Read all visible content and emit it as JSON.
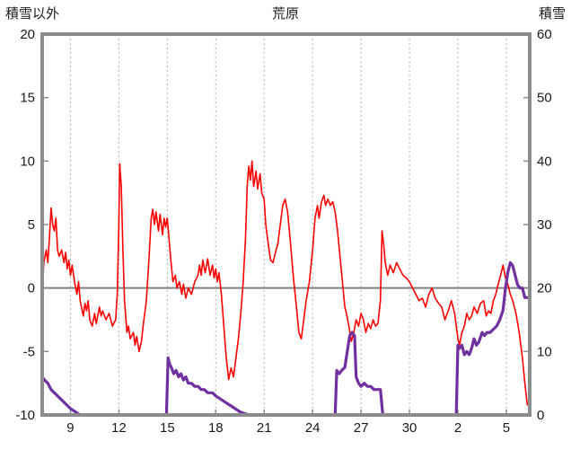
{
  "page": {
    "top_left_label": "積雪以外",
    "top_center_title": "荒原",
    "top_right_label": "積雪"
  },
  "chart_data": {
    "type": "line",
    "title": "荒原",
    "left_axis": {
      "label": "積雪以外",
      "min": -10,
      "max": 20,
      "ticks": [
        20,
        15,
        10,
        5,
        0,
        -5,
        -10
      ]
    },
    "right_axis": {
      "label": "積雪",
      "min": 0,
      "max": 60,
      "ticks": [
        60,
        50,
        40,
        30,
        20,
        10,
        0
      ]
    },
    "x_axis": {
      "min": 7.25,
      "max": 37.45,
      "tick_positions": [
        9,
        12,
        15,
        18,
        21,
        24,
        27,
        30,
        33,
        36
      ],
      "tick_labels": [
        "9",
        "12",
        "15",
        "18",
        "21",
        "24",
        "27",
        "30",
        "2",
        "5"
      ]
    },
    "grid": {
      "vertical_dashed": true,
      "zero_line_on_left_axis": true
    },
    "colors": {
      "red_series": "#ff0000",
      "purple_series": "#7030a0",
      "frame": "#8c8c8c",
      "grid": "#b3b3b3",
      "zero_line": "#808080",
      "text": "#1a1a1a"
    },
    "series": [
      {
        "name": "left-axis-red-line",
        "axis": "left",
        "color": "#ff0000",
        "width": 1.6,
        "points": [
          [
            7.25,
            -0.5
          ],
          [
            7.35,
            2
          ],
          [
            7.5,
            3
          ],
          [
            7.6,
            2
          ],
          [
            7.7,
            4
          ],
          [
            7.8,
            6.3
          ],
          [
            7.9,
            5
          ],
          [
            8.0,
            4.5
          ],
          [
            8.1,
            5.5
          ],
          [
            8.2,
            3
          ],
          [
            8.3,
            2.5
          ],
          [
            8.45,
            3
          ],
          [
            8.6,
            2
          ],
          [
            8.7,
            2.8
          ],
          [
            8.8,
            1.5
          ],
          [
            8.9,
            2.2
          ],
          [
            9.0,
            1
          ],
          [
            9.1,
            1.8
          ],
          [
            9.25,
            0.5
          ],
          [
            9.4,
            -0.5
          ],
          [
            9.5,
            0.5
          ],
          [
            9.6,
            -1
          ],
          [
            9.8,
            -2.2
          ],
          [
            9.9,
            -1.2
          ],
          [
            10.0,
            -1.8
          ],
          [
            10.1,
            -1
          ],
          [
            10.2,
            -2.5
          ],
          [
            10.35,
            -3
          ],
          [
            10.5,
            -2
          ],
          [
            10.6,
            -2.8
          ],
          [
            10.8,
            -1.5
          ],
          [
            10.9,
            -2.2
          ],
          [
            11.0,
            -1.8
          ],
          [
            11.2,
            -2.5
          ],
          [
            11.4,
            -2
          ],
          [
            11.6,
            -3
          ],
          [
            11.8,
            -2.5
          ],
          [
            11.9,
            -0.5
          ],
          [
            12.0,
            5
          ],
          [
            12.05,
            9.8
          ],
          [
            12.15,
            8
          ],
          [
            12.25,
            3
          ],
          [
            12.35,
            -1
          ],
          [
            12.5,
            -3.5
          ],
          [
            12.6,
            -3
          ],
          [
            12.7,
            -4
          ],
          [
            12.9,
            -3.5
          ],
          [
            13.0,
            -4.5
          ],
          [
            13.1,
            -3.8
          ],
          [
            13.25,
            -5
          ],
          [
            13.4,
            -4.2
          ],
          [
            13.5,
            -3
          ],
          [
            13.7,
            -1
          ],
          [
            13.85,
            2
          ],
          [
            14.0,
            5.5
          ],
          [
            14.1,
            6.2
          ],
          [
            14.2,
            5
          ],
          [
            14.3,
            6
          ],
          [
            14.45,
            4.5
          ],
          [
            14.55,
            5.8
          ],
          [
            14.7,
            4.2
          ],
          [
            14.8,
            5.5
          ],
          [
            14.9,
            4.8
          ],
          [
            15.0,
            5.5
          ],
          [
            15.1,
            4
          ],
          [
            15.2,
            2.5
          ],
          [
            15.35,
            0.5
          ],
          [
            15.5,
            1
          ],
          [
            15.6,
            0
          ],
          [
            15.75,
            0.5
          ],
          [
            15.9,
            -0.5
          ],
          [
            16.0,
            0.3
          ],
          [
            16.15,
            -0.8
          ],
          [
            16.3,
            0
          ],
          [
            16.5,
            -0.5
          ],
          [
            16.7,
            0.5
          ],
          [
            16.9,
            1
          ],
          [
            17.0,
            1.8
          ],
          [
            17.1,
            1
          ],
          [
            17.2,
            2.2
          ],
          [
            17.35,
            1.2
          ],
          [
            17.5,
            2.3
          ],
          [
            17.65,
            1
          ],
          [
            17.8,
            1.8
          ],
          [
            17.9,
            0.8
          ],
          [
            18.0,
            1.5
          ],
          [
            18.1,
            0.5
          ],
          [
            18.2,
            1.2
          ],
          [
            18.35,
            -0.5
          ],
          [
            18.5,
            -3
          ],
          [
            18.65,
            -5.5
          ],
          [
            18.8,
            -7.2
          ],
          [
            18.95,
            -6.3
          ],
          [
            19.1,
            -7
          ],
          [
            19.25,
            -5.5
          ],
          [
            19.4,
            -4
          ],
          [
            19.55,
            -2
          ],
          [
            19.7,
            0.5
          ],
          [
            19.85,
            4
          ],
          [
            19.95,
            8
          ],
          [
            20.05,
            9.6
          ],
          [
            20.15,
            8.5
          ],
          [
            20.25,
            10
          ],
          [
            20.35,
            8
          ],
          [
            20.5,
            9.2
          ],
          [
            20.6,
            7.8
          ],
          [
            20.75,
            9
          ],
          [
            20.85,
            7.5
          ],
          [
            21.0,
            7
          ],
          [
            21.1,
            5
          ],
          [
            21.25,
            3.5
          ],
          [
            21.4,
            2.2
          ],
          [
            21.55,
            2
          ],
          [
            21.7,
            2.8
          ],
          [
            21.85,
            3.5
          ],
          [
            22.0,
            5
          ],
          [
            22.15,
            6.5
          ],
          [
            22.3,
            7
          ],
          [
            22.45,
            6
          ],
          [
            22.6,
            4
          ],
          [
            22.8,
            1
          ],
          [
            23.0,
            -1.5
          ],
          [
            23.15,
            -3.5
          ],
          [
            23.3,
            -4
          ],
          [
            23.45,
            -2.5
          ],
          [
            23.6,
            -1
          ],
          [
            23.8,
            0.5
          ],
          [
            24.0,
            3
          ],
          [
            24.15,
            5.5
          ],
          [
            24.3,
            6.5
          ],
          [
            24.4,
            5.5
          ],
          [
            24.55,
            6.8
          ],
          [
            24.7,
            7.3
          ],
          [
            24.8,
            6.5
          ],
          [
            24.95,
            7
          ],
          [
            25.1,
            6.5
          ],
          [
            25.25,
            6.8
          ],
          [
            25.4,
            6
          ],
          [
            25.55,
            4.5
          ],
          [
            25.7,
            2.5
          ],
          [
            25.85,
            0.5
          ],
          [
            26.0,
            -1.5
          ],
          [
            26.1,
            -2
          ],
          [
            26.25,
            -3
          ],
          [
            26.4,
            -4.2
          ],
          [
            26.55,
            -3.5
          ],
          [
            26.7,
            -2.5
          ],
          [
            26.85,
            -3
          ],
          [
            27.0,
            -2
          ],
          [
            27.15,
            -2.5
          ],
          [
            27.3,
            -3.5
          ],
          [
            27.45,
            -2.8
          ],
          [
            27.6,
            -3.2
          ],
          [
            27.75,
            -2.5
          ],
          [
            27.9,
            -3
          ],
          [
            28.05,
            -2.8
          ],
          [
            28.2,
            -1
          ],
          [
            28.3,
            4.5
          ],
          [
            28.4,
            3.5
          ],
          [
            28.5,
            2
          ],
          [
            28.65,
            1
          ],
          [
            28.8,
            1.8
          ],
          [
            29.0,
            1.2
          ],
          [
            29.2,
            2
          ],
          [
            29.4,
            1.5
          ],
          [
            29.6,
            1
          ],
          [
            29.8,
            0.8
          ],
          [
            30.0,
            0.5
          ],
          [
            30.2,
            0
          ],
          [
            30.4,
            -0.5
          ],
          [
            30.6,
            -1
          ],
          [
            30.8,
            -0.8
          ],
          [
            31.0,
            -1.5
          ],
          [
            31.2,
            -0.5
          ],
          [
            31.4,
            0
          ],
          [
            31.6,
            -0.8
          ],
          [
            31.8,
            -1.2
          ],
          [
            32.0,
            -1.5
          ],
          [
            32.2,
            -2.5
          ],
          [
            32.4,
            -1.8
          ],
          [
            32.6,
            -1
          ],
          [
            32.8,
            -2
          ],
          [
            33.0,
            -4
          ],
          [
            33.1,
            -4.5
          ],
          [
            33.25,
            -3.5
          ],
          [
            33.4,
            -3
          ],
          [
            33.55,
            -2
          ],
          [
            33.7,
            -2.5
          ],
          [
            33.85,
            -2.2
          ],
          [
            34.0,
            -1.5
          ],
          [
            34.2,
            -2
          ],
          [
            34.4,
            -1.2
          ],
          [
            34.6,
            -1
          ],
          [
            34.75,
            -2.2
          ],
          [
            34.9,
            -1.8
          ],
          [
            35.05,
            -2
          ],
          [
            35.2,
            -1
          ],
          [
            35.35,
            -0.5
          ],
          [
            35.5,
            0.3
          ],
          [
            35.65,
            1
          ],
          [
            35.8,
            1.8
          ],
          [
            35.95,
            0.8
          ],
          [
            36.1,
            0.3
          ],
          [
            36.25,
            -0.5
          ],
          [
            36.4,
            -1
          ],
          [
            36.6,
            -2
          ],
          [
            36.8,
            -3.5
          ],
          [
            37.0,
            -5.5
          ],
          [
            37.15,
            -7.5
          ],
          [
            37.3,
            -9.2
          ]
        ]
      },
      {
        "name": "right-axis-purple-line",
        "axis": "right",
        "color": "#7030a0",
        "width": 3.2,
        "points": [
          [
            7.25,
            6
          ],
          [
            7.4,
            5.5
          ],
          [
            7.6,
            5
          ],
          [
            7.8,
            4
          ],
          [
            8.0,
            3.5
          ],
          [
            8.2,
            3
          ],
          [
            8.4,
            2.5
          ],
          [
            8.6,
            2
          ],
          [
            8.8,
            1.5
          ],
          [
            9.0,
            1
          ],
          [
            9.3,
            0.5
          ],
          [
            9.6,
            0
          ],
          [
            14.95,
            0
          ],
          [
            15.05,
            9
          ],
          [
            15.15,
            8
          ],
          [
            15.25,
            7.5
          ],
          [
            15.4,
            6.5
          ],
          [
            15.55,
            7
          ],
          [
            15.7,
            6
          ],
          [
            15.85,
            6.5
          ],
          [
            16.0,
            5.5
          ],
          [
            16.15,
            6
          ],
          [
            16.3,
            5
          ],
          [
            16.5,
            5
          ],
          [
            16.7,
            4.5
          ],
          [
            16.9,
            4.5
          ],
          [
            17.1,
            4
          ],
          [
            17.3,
            4
          ],
          [
            17.5,
            3.5
          ],
          [
            17.8,
            3.5
          ],
          [
            18.0,
            3
          ],
          [
            18.3,
            2.5
          ],
          [
            18.6,
            2
          ],
          [
            18.9,
            1.5
          ],
          [
            19.2,
            1
          ],
          [
            19.5,
            0.5
          ],
          [
            19.8,
            0.2
          ],
          [
            20.1,
            0
          ],
          [
            25.4,
            0
          ],
          [
            25.5,
            7
          ],
          [
            25.65,
            6.5
          ],
          [
            25.8,
            7
          ],
          [
            26.0,
            7.5
          ],
          [
            26.15,
            10
          ],
          [
            26.3,
            12.5
          ],
          [
            26.45,
            13
          ],
          [
            26.6,
            12.5
          ],
          [
            26.7,
            6
          ],
          [
            26.85,
            5
          ],
          [
            27.0,
            4.5
          ],
          [
            27.2,
            5
          ],
          [
            27.4,
            4.5
          ],
          [
            27.6,
            4.5
          ],
          [
            27.8,
            4
          ],
          [
            28.0,
            4
          ],
          [
            28.2,
            4
          ],
          [
            28.35,
            0
          ],
          [
            32.9,
            0
          ],
          [
            33.0,
            11
          ],
          [
            33.1,
            10.5
          ],
          [
            33.25,
            11
          ],
          [
            33.4,
            9.5
          ],
          [
            33.55,
            10
          ],
          [
            33.7,
            9.5
          ],
          [
            33.85,
            10.5
          ],
          [
            34.0,
            12
          ],
          [
            34.15,
            11
          ],
          [
            34.3,
            11.5
          ],
          [
            34.5,
            13
          ],
          [
            34.65,
            12.5
          ],
          [
            34.8,
            13
          ],
          [
            35.0,
            13
          ],
          [
            35.2,
            13.5
          ],
          [
            35.4,
            14
          ],
          [
            35.6,
            15
          ],
          [
            35.8,
            16.5
          ],
          [
            35.95,
            20
          ],
          [
            36.1,
            22.5
          ],
          [
            36.25,
            24
          ],
          [
            36.4,
            23.5
          ],
          [
            36.55,
            22
          ],
          [
            36.7,
            20.5
          ],
          [
            36.85,
            20
          ],
          [
            37.0,
            20
          ],
          [
            37.15,
            18.5
          ],
          [
            37.3,
            18.5
          ]
        ]
      }
    ]
  }
}
